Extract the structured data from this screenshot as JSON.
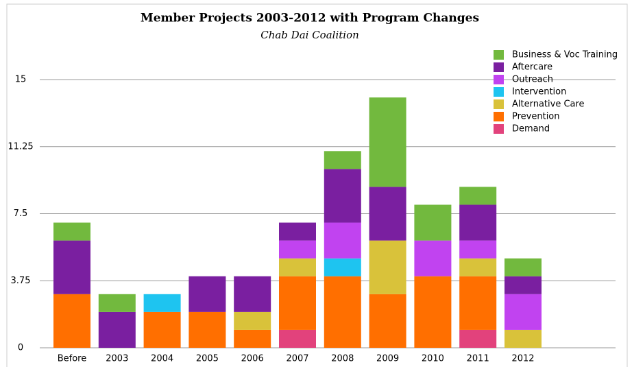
{
  "chart_data": {
    "type": "stacked_bar",
    "title": "Member Projects 2003-2012 with Program Changes",
    "subtitle": "Chab Dai Coalition",
    "categories": [
      "Before",
      "2003",
      "2004",
      "2005",
      "2006",
      "2007",
      "2008",
      "2009",
      "2010",
      "2011",
      "2012"
    ],
    "series": [
      {
        "name": "Demand",
        "color": "#e2427c",
        "values": [
          0,
          0,
          0,
          0,
          0,
          1,
          0,
          0,
          0,
          1,
          0
        ]
      },
      {
        "name": "Prevention",
        "color": "#ff6f00",
        "values": [
          3,
          0,
          2,
          2,
          1,
          3,
          4,
          3,
          4,
          3,
          0
        ]
      },
      {
        "name": "Alternative Care",
        "color": "#d9c23a",
        "values": [
          0,
          0,
          0,
          0,
          1,
          1,
          0,
          3,
          0,
          1,
          1
        ]
      },
      {
        "name": "Intervention",
        "color": "#1ec4f0",
        "values": [
          0,
          0,
          1,
          0,
          0,
          0,
          1,
          0,
          0,
          0,
          0
        ]
      },
      {
        "name": "Outreach",
        "color": "#c143f0",
        "values": [
          0,
          0,
          0,
          0,
          0,
          1,
          2,
          0,
          2,
          1,
          2
        ]
      },
      {
        "name": "Aftercare",
        "color": "#7a1fa0",
        "values": [
          3,
          2,
          0,
          2,
          2,
          1,
          3,
          3,
          0,
          2,
          1
        ]
      },
      {
        "name": "Business & Voc Training",
        "color": "#72b93e",
        "values": [
          1,
          1,
          0,
          0,
          0,
          0,
          1,
          5,
          2,
          1,
          1
        ]
      }
    ],
    "ylim": [
      0,
      15
    ],
    "yticks": [
      0,
      3.75,
      7.5,
      11.25,
      15
    ],
    "grid": true,
    "legend": "top-right"
  }
}
